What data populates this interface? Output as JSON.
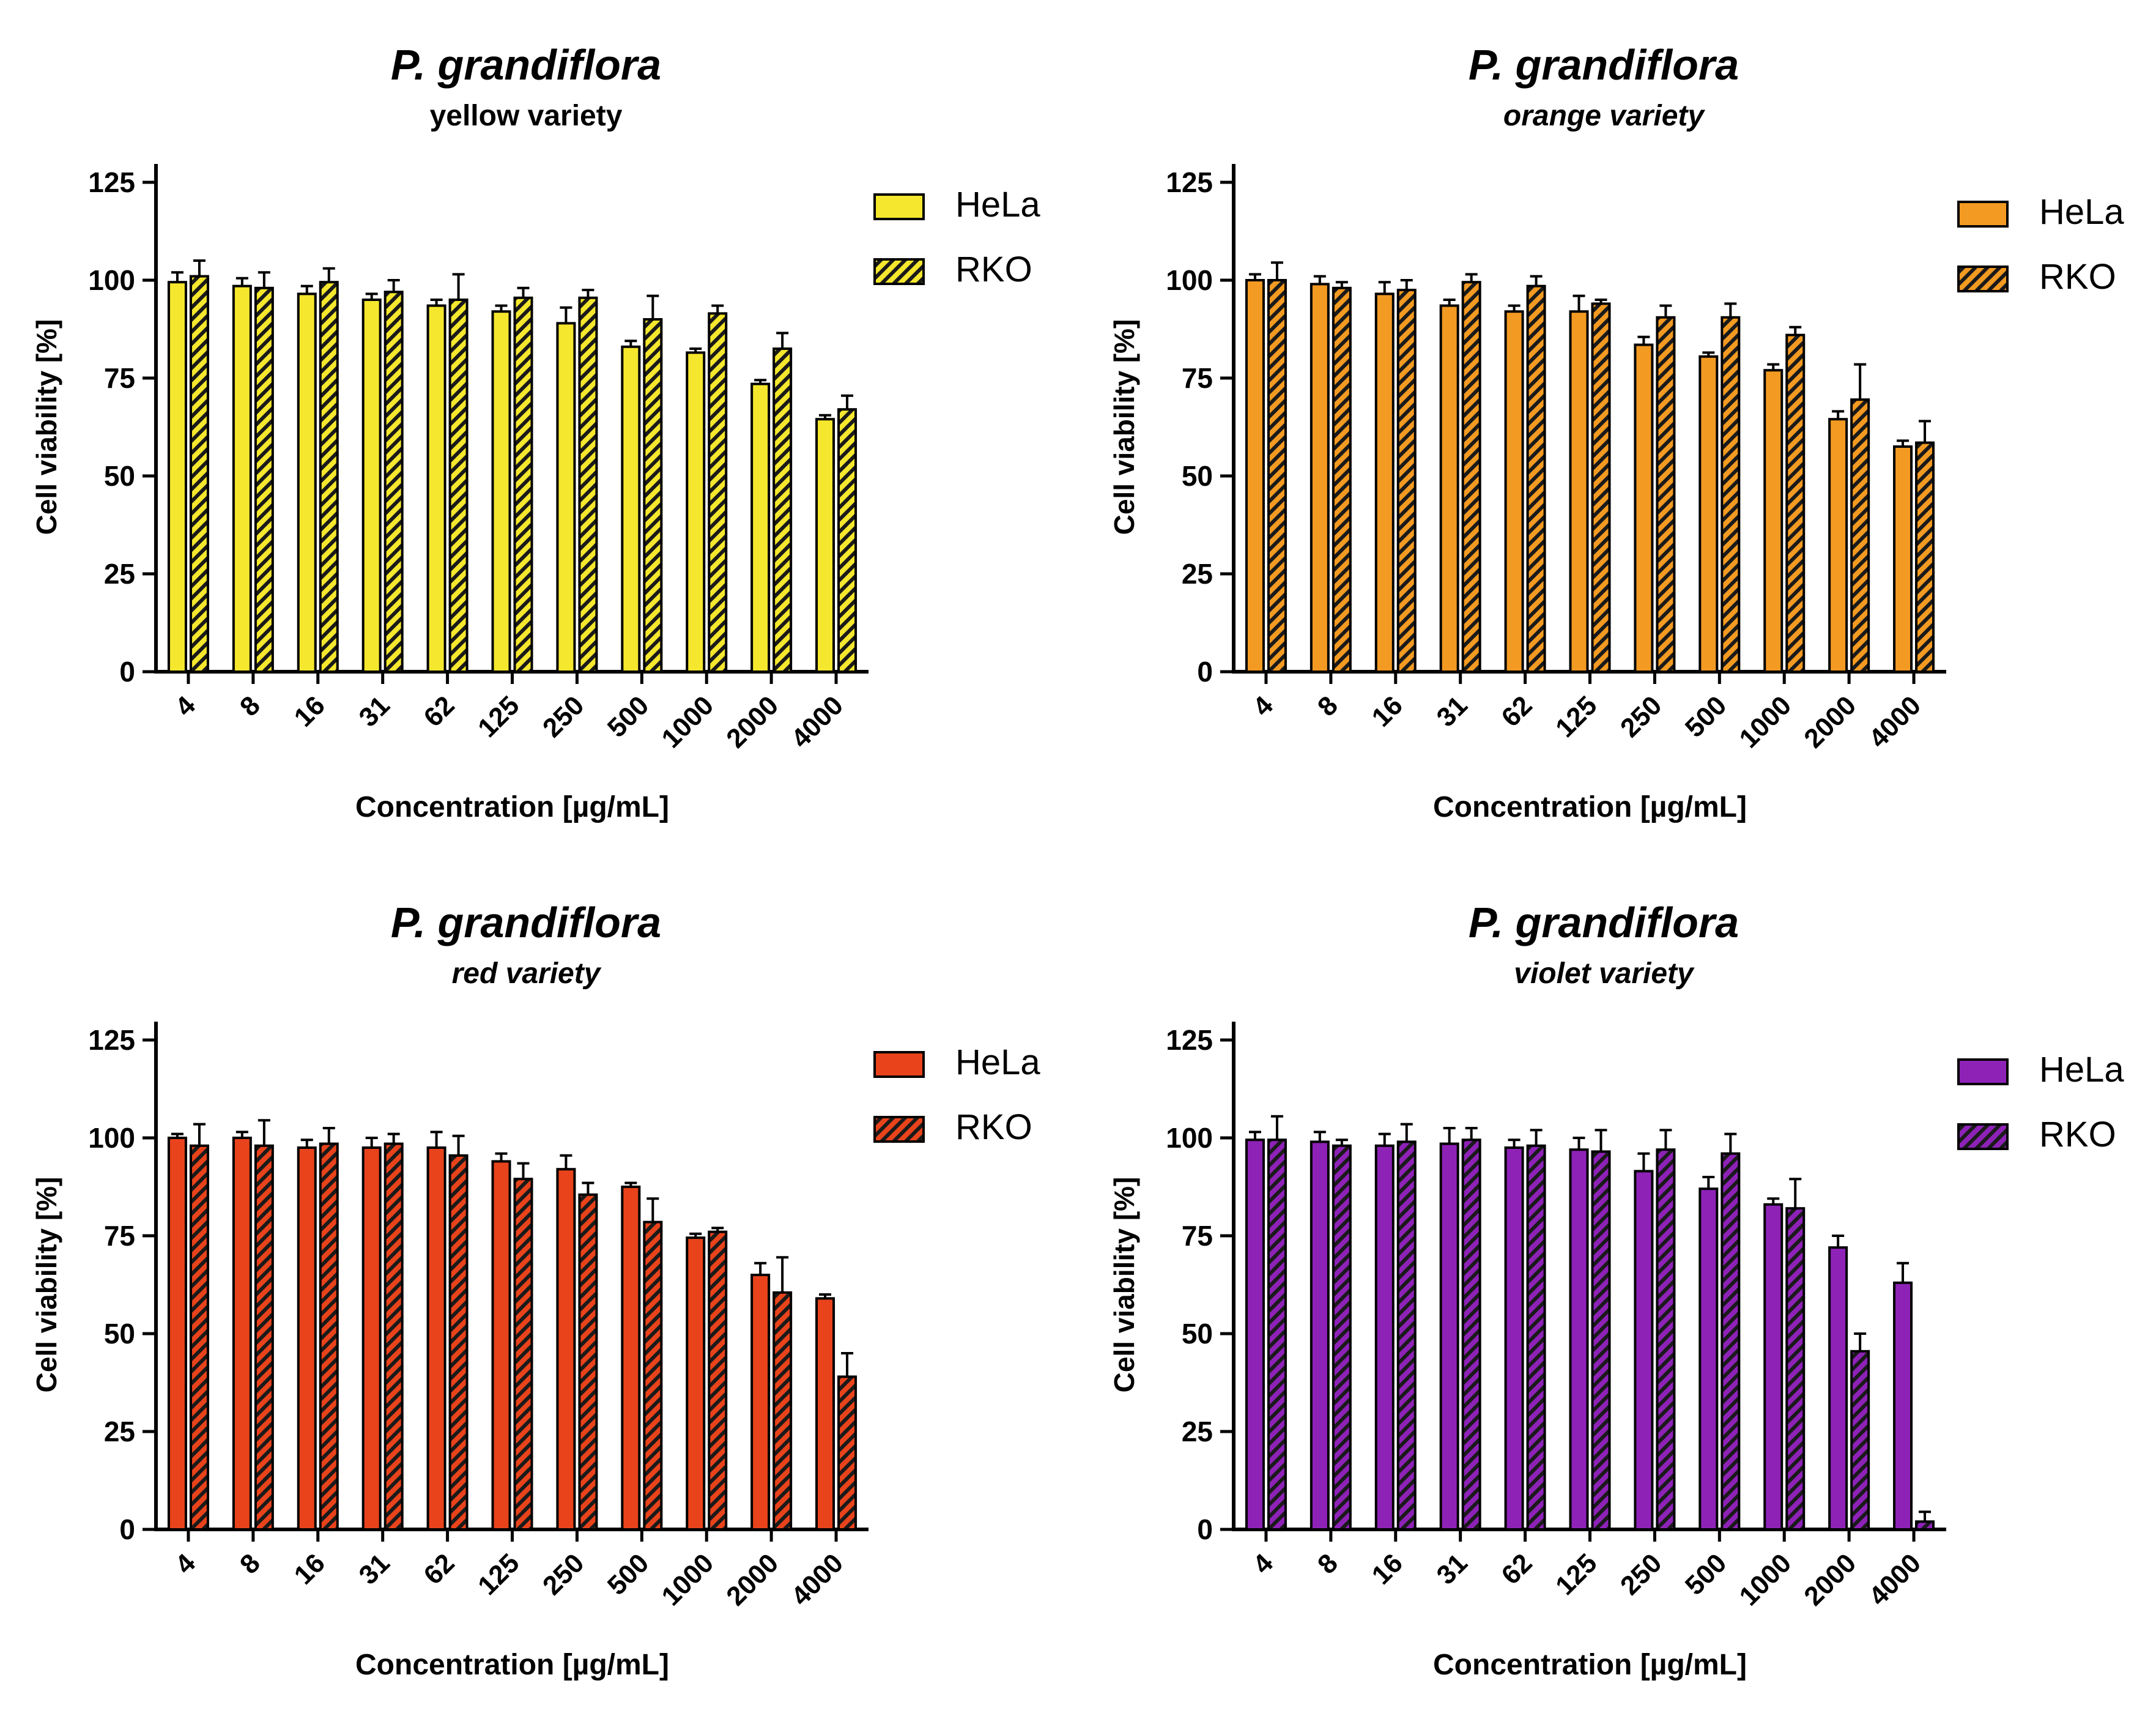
{
  "figure": "P. grandiflora cell viability",
  "chart_data": [
    {
      "type": "bar",
      "title": "P. grandiflora",
      "subtitle": "yellow variety",
      "xlabel": "Concentration [µg/mL]",
      "ylabel": "Cell viability [%]",
      "ylim": [
        0,
        125
      ],
      "yticks": [
        "0",
        "25",
        "50",
        "75",
        "100",
        "125"
      ],
      "categories": [
        "4",
        "8",
        "16",
        "31",
        "62",
        "125",
        "250",
        "500",
        "1000",
        "2000",
        "4000"
      ],
      "color": "#F5E72E",
      "legend_position": "top-right",
      "series": [
        {
          "name": "HeLa",
          "pattern": "solid",
          "values": [
            99.5,
            98.5,
            96.5,
            95,
            93.5,
            92,
            89,
            83,
            81.5,
            73.5,
            64.5
          ],
          "errors": [
            2.5,
            2,
            2,
            1.5,
            1.5,
            1.5,
            4,
            1.5,
            1,
            1,
            1
          ]
        },
        {
          "name": "RKO",
          "pattern": "hatched",
          "values": [
            101,
            98,
            99.5,
            97,
            95,
            95.5,
            95.5,
            90,
            91.5,
            82.5,
            67
          ],
          "errors": [
            4,
            4,
            3.5,
            3,
            6.5,
            2.5,
            2,
            6,
            2,
            4,
            3.5
          ]
        }
      ]
    },
    {
      "type": "bar",
      "title": "P. grandiflora",
      "subtitle": "orange variety",
      "xlabel": "Concentration [µg/mL]",
      "ylabel": "Cell viability [%]",
      "ylim": [
        0,
        125
      ],
      "yticks": [
        "0",
        "25",
        "50",
        "75",
        "100",
        "125"
      ],
      "categories": [
        "4",
        "8",
        "16",
        "31",
        "62",
        "125",
        "250",
        "500",
        "1000",
        "2000",
        "4000"
      ],
      "color": "#F39A22",
      "legend_position": "top-right",
      "series": [
        {
          "name": "HeLa",
          "pattern": "solid",
          "values": [
            100,
            99,
            96.5,
            93.5,
            92,
            92,
            83.5,
            80.5,
            77,
            64.5,
            57.5
          ],
          "errors": [
            1.5,
            2,
            3,
            1.5,
            1.5,
            4,
            2,
            1,
            1.5,
            2,
            1.5
          ]
        },
        {
          "name": "RKO",
          "pattern": "hatched",
          "values": [
            100,
            98,
            97.5,
            99.5,
            98.5,
            94,
            90.5,
            90.5,
            86,
            69.5,
            58.5
          ],
          "errors": [
            4.5,
            1.5,
            2.5,
            2,
            2.5,
            1,
            3,
            3.5,
            2,
            9,
            5.5
          ]
        }
      ]
    },
    {
      "type": "bar",
      "title": "P. grandiflora",
      "subtitle": "red variety",
      "xlabel": "Concentration [µg/mL]",
      "ylabel": "Cell viability [%]",
      "ylim": [
        0,
        125
      ],
      "yticks": [
        "0",
        "25",
        "50",
        "75",
        "100",
        "125"
      ],
      "categories": [
        "4",
        "8",
        "16",
        "31",
        "62",
        "125",
        "250",
        "500",
        "1000",
        "2000",
        "4000"
      ],
      "color": "#E8431B",
      "legend_position": "top-right",
      "series": [
        {
          "name": "HeLa",
          "pattern": "solid",
          "values": [
            100,
            100,
            97.5,
            97.5,
            97.5,
            94,
            92,
            87.5,
            74.5,
            65,
            59
          ],
          "errors": [
            1,
            1.5,
            2,
            2.5,
            4,
            2,
            3.5,
            1,
            1,
            3,
            1
          ]
        },
        {
          "name": "RKO",
          "pattern": "hatched",
          "values": [
            98,
            98,
            98.5,
            98.5,
            95.5,
            89.5,
            85.5,
            78.5,
            76,
            60.5,
            39
          ],
          "errors": [
            5.5,
            6.5,
            4,
            2.5,
            5,
            4,
            3,
            6,
            1,
            9,
            6
          ]
        }
      ]
    },
    {
      "type": "bar",
      "title": "P. grandiflora",
      "subtitle": "violet variety",
      "xlabel": "Concentration [µg/mL]",
      "ylabel": "Cell viability [%]",
      "ylim": [
        0,
        125
      ],
      "yticks": [
        "0",
        "25",
        "50",
        "75",
        "100",
        "125"
      ],
      "categories": [
        "4",
        "8",
        "16",
        "31",
        "62",
        "125",
        "250",
        "500",
        "1000",
        "2000",
        "4000"
      ],
      "color": "#8E22B7",
      "legend_position": "top-right",
      "series": [
        {
          "name": "HeLa",
          "pattern": "solid",
          "values": [
            99.5,
            99,
            98,
            98.5,
            97.5,
            97,
            91.5,
            87,
            83,
            72,
            63
          ],
          "errors": [
            2,
            2.5,
            3,
            4,
            2,
            3,
            4.5,
            3,
            1.5,
            3,
            5
          ]
        },
        {
          "name": "RKO",
          "pattern": "hatched",
          "values": [
            99.5,
            98,
            99,
            99.5,
            98,
            96.5,
            97,
            96,
            82,
            45.5,
            2
          ],
          "errors": [
            6,
            1.5,
            4.5,
            3,
            4,
            5.5,
            5,
            5,
            7.5,
            4.5,
            2.5
          ]
        }
      ]
    }
  ]
}
